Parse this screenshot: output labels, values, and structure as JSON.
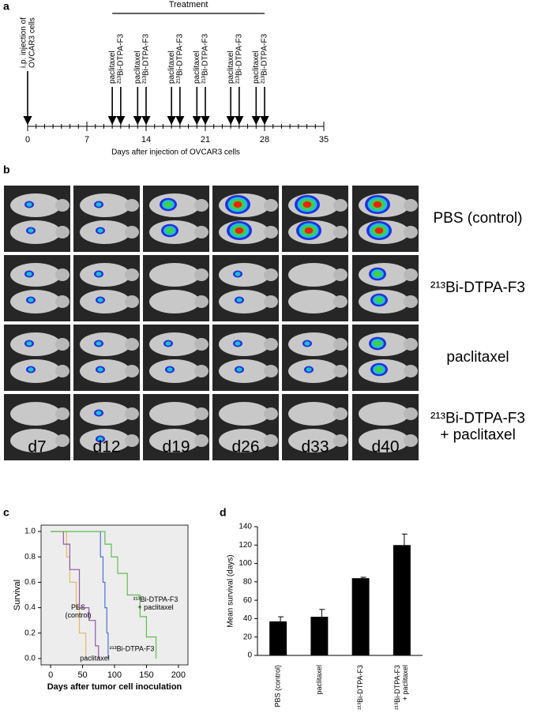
{
  "panel_b": {
    "panel": "b",
    "columns": [
      "d7",
      "d12",
      "d19",
      "d26",
      "d33",
      "d40"
    ],
    "rows": [
      "PBS (control)",
      "²¹³Bi-DTPA-F3",
      "paclitaxel",
      "²¹³Bi-DTPA-F3\n+ paclitaxel"
    ]
  },
  "chart_data": [
    {
      "type": "timeline",
      "panel": "a",
      "xlabel": "Days after injection of OVCAR3 cells",
      "xlim": [
        0,
        35
      ],
      "xticks": [
        0,
        7,
        14,
        21,
        28,
        35
      ],
      "minor_xticks": [
        0,
        1,
        2,
        3,
        4,
        5,
        6,
        7,
        8,
        9,
        10,
        11,
        12,
        13,
        14,
        15,
        16,
        17,
        18,
        19,
        20,
        21,
        22,
        23,
        24,
        25,
        26,
        27,
        28,
        29,
        30,
        31,
        32,
        33,
        34,
        35
      ],
      "treatment": {
        "label": "Treatment",
        "range": [
          10,
          28
        ]
      },
      "events": [
        {
          "x": 0,
          "label": "i.p. injection of\nOVCAR3 cells"
        },
        {
          "x": 10,
          "label": "paclitaxel"
        },
        {
          "x": 11,
          "label": "²¹³Bi-DTPA-F3"
        },
        {
          "x": 13,
          "label": "paclitaxel"
        },
        {
          "x": 14,
          "label": "²¹³Bi-DTPA-F3"
        },
        {
          "x": 17,
          "label": "paclitaxel"
        },
        {
          "x": 18,
          "label": "²¹³Bi-DTPA-F3"
        },
        {
          "x": 20,
          "label": "paclitaxel"
        },
        {
          "x": 21,
          "label": "²¹³Bi-DTPA-F3"
        },
        {
          "x": 24,
          "label": "paclitaxel"
        },
        {
          "x": 25,
          "label": "²¹³Bi-DTPA-F3"
        },
        {
          "x": 27,
          "label": "paclitaxel"
        },
        {
          "x": 28,
          "label": "²¹³Bi-DTPA-F3"
        }
      ]
    },
    {
      "type": "step",
      "panel": "c",
      "xlabel": "Days after tumor cell inoculation",
      "ylabel": "Survival",
      "xlim": [
        -15,
        215
      ],
      "xticks": [
        0,
        50,
        100,
        150,
        200
      ],
      "ylim": [
        -0.05,
        1.05
      ],
      "yticks": [
        {
          "value": 0,
          "label": "0.0"
        },
        0.2,
        0.4,
        0.6,
        0.8,
        {
          "value": 1,
          "label": "1.0"
        }
      ],
      "series": [
        {
          "name": "PBS\n(control)",
          "color": "#e8b868",
          "x": [
            0,
            25,
            30,
            40,
            45,
            55
          ],
          "values": [
            1,
            0.8,
            0.6,
            0.4,
            0.2,
            0
          ]
        },
        {
          "name": "paclitaxel",
          "color": "#8e5aa8",
          "x": [
            0,
            20,
            30,
            45,
            60,
            70,
            75
          ],
          "values": [
            1,
            0.9,
            0.7,
            0.4,
            0.3,
            0.1,
            0
          ]
        },
        {
          "name": "²¹³Bi-DTPA-F3",
          "color": "#5070d0",
          "x": [
            0,
            78,
            82,
            85,
            88,
            90
          ],
          "values": [
            1,
            0.8,
            0.6,
            0.4,
            0.2,
            0
          ]
        },
        {
          "name": "²¹³Bi-DTPA-F3\n+ paclitaxel",
          "color": "#5cbf4c",
          "x": [
            0,
            85,
            95,
            105,
            120,
            140,
            150,
            165
          ],
          "values": [
            1,
            0.9,
            0.8,
            0.67,
            0.5,
            0.33,
            0.17,
            0
          ]
        }
      ]
    },
    {
      "type": "bar",
      "panel": "d",
      "ylabel": "Mean survival (days)",
      "categories": [
        "PBS (control)",
        "paclitaxel",
        "²¹³Bi-DTPA-F3",
        "²¹³Bi-DTPA-F3\n+ paclitaxel"
      ],
      "values": [
        37,
        42,
        84,
        120
      ],
      "errors": [
        5,
        8,
        1,
        12
      ],
      "color": "#000000",
      "ylim": [
        0,
        140
      ],
      "yticks": [
        0,
        20,
        40,
        60,
        80,
        100,
        120,
        140
      ]
    }
  ]
}
